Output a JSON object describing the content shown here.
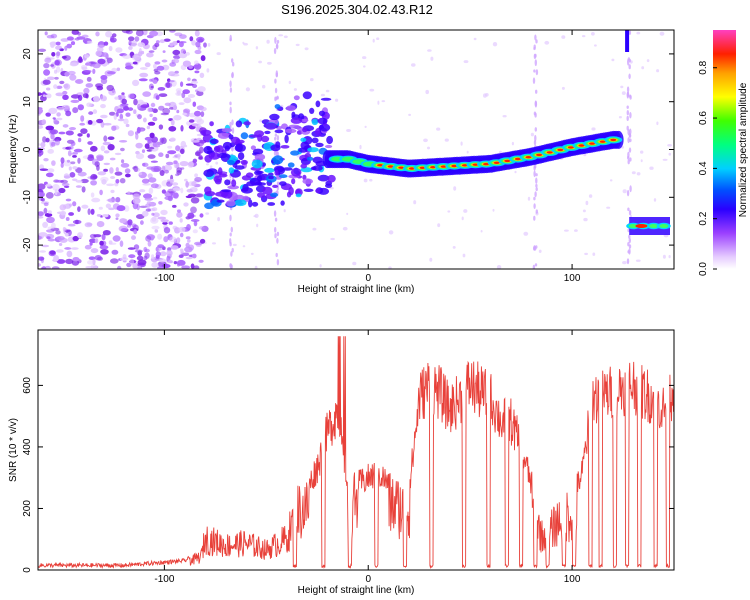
{
  "title": "S196.2025.304.02.43.R12",
  "colors": {
    "snr_line": "#e8413a",
    "scatter_purple": "#7b2cf0",
    "ridge_blue": "#2200ff"
  },
  "chart_data": [
    {
      "type": "heatmap",
      "name": "spectrogram",
      "xlabel": "Height of straight line (km)",
      "ylabel": "Frequency (Hz)",
      "xlim": [
        -162,
        150
      ],
      "ylim": [
        -25,
        25
      ],
      "xticks": [
        -100,
        0,
        100
      ],
      "yticks": [
        -20,
        -10,
        0,
        10,
        20
      ],
      "colorbar": {
        "label": "Normalized spectral amplitude",
        "range": [
          0,
          0.95
        ],
        "ticks": [
          0.0,
          0.2,
          0.4,
          0.6,
          0.8
        ]
      },
      "ridge": {
        "x": [
          -80,
          -60,
          -40,
          -20,
          -10,
          0,
          20,
          40,
          60,
          80,
          100,
          120,
          125
        ],
        "y": [
          -6,
          -5.5,
          -3,
          -2,
          -2,
          -3,
          -4,
          -3.5,
          -3,
          -1.5,
          0.5,
          2,
          2
        ],
        "jump": {
          "x": [
            128,
            148
          ],
          "y": [
            -16,
            -16
          ]
        }
      }
    },
    {
      "type": "line",
      "name": "snr",
      "xlabel": "Height of straight line (km)",
      "ylabel": "SNR (10 * v/v)",
      "xlim": [
        -162,
        150
      ],
      "ylim": [
        0,
        780
      ],
      "xticks": [
        -100,
        0,
        100
      ],
      "yticks": [
        0,
        200,
        400,
        600
      ],
      "envelope_x": [
        -162,
        -120,
        -90,
        -82,
        -80,
        -70,
        -60,
        -50,
        -40,
        -35,
        -30,
        -25,
        -20,
        -15,
        -12,
        -10,
        -5,
        0,
        5,
        10,
        15,
        20,
        25,
        30,
        35,
        40,
        45,
        50,
        55,
        60,
        65,
        70,
        75,
        80,
        85,
        90,
        95,
        100,
        105,
        110,
        115,
        120,
        125,
        130,
        135,
        140,
        145,
        150
      ],
      "envelope_y": [
        15,
        15,
        30,
        60,
        140,
        110,
        120,
        90,
        140,
        260,
        280,
        360,
        480,
        560,
        400,
        280,
        300,
        320,
        340,
        300,
        280,
        270,
        600,
        650,
        620,
        560,
        600,
        650,
        620,
        600,
        520,
        520,
        430,
        300,
        150,
        180,
        240,
        250,
        340,
        600,
        610,
        620,
        640,
        650,
        620,
        600,
        560,
        640
      ],
      "dropouts_x": [
        -36,
        -22,
        -9,
        4,
        18,
        31,
        47,
        59,
        68,
        75,
        82,
        88,
        96,
        101,
        109,
        114,
        121,
        127,
        133,
        141,
        147
      ]
    }
  ]
}
